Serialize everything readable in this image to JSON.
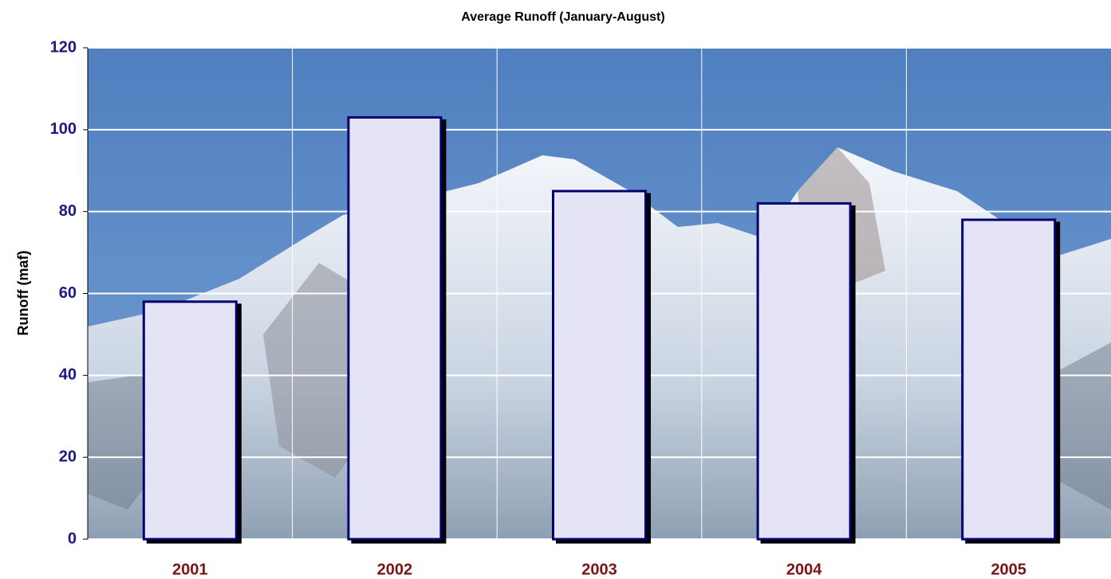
{
  "chart_data": {
    "type": "bar",
    "title": "Average Runoff (January-August)",
    "y_label": "Runoff (maf)",
    "categories": [
      "2001",
      "2002",
      "2003",
      "2004",
      "2005"
    ],
    "values": [
      58,
      103,
      85,
      82,
      78
    ],
    "color": "#e4e4f6",
    "ylim": [
      0,
      120
    ],
    "yticks": [
      0,
      20,
      40,
      60,
      80,
      100,
      120
    ],
    "grid": true
  }
}
